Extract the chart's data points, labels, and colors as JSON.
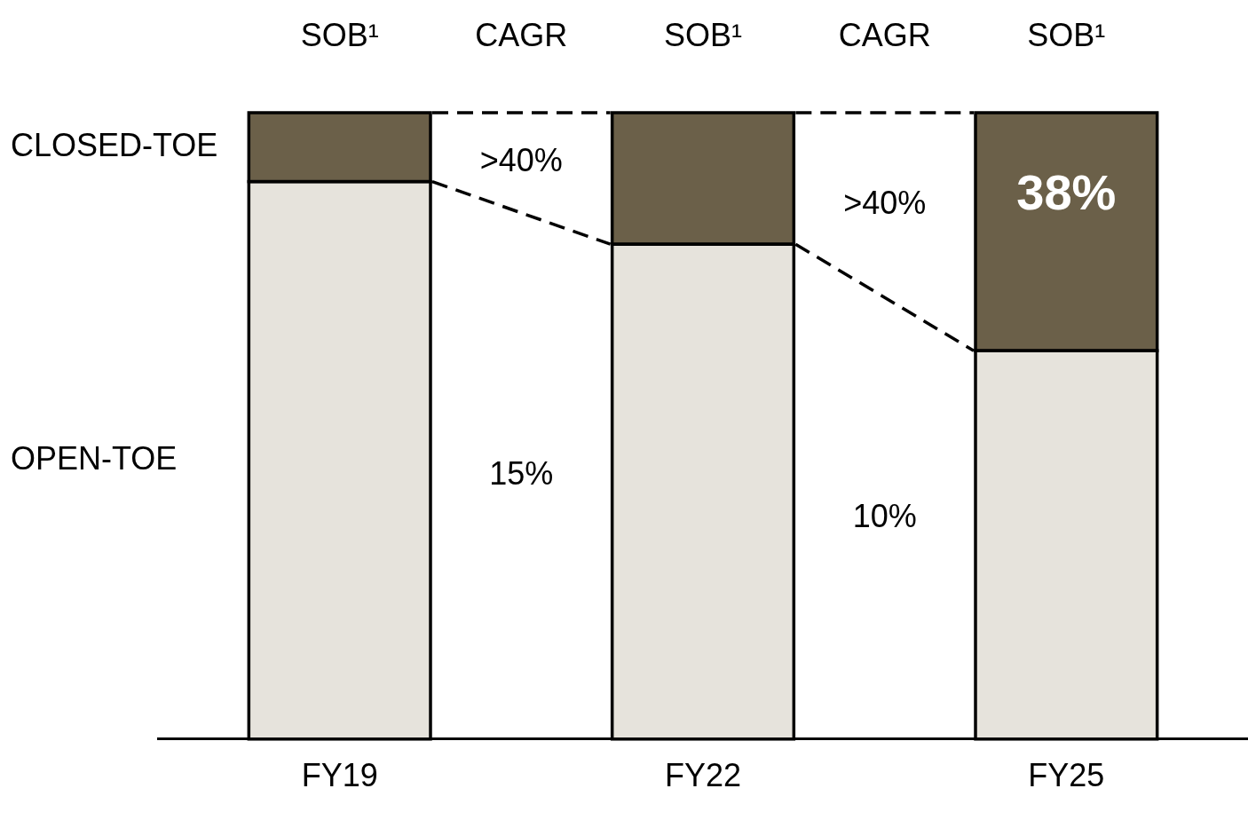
{
  "chart_data": {
    "type": "bar",
    "stacked": true,
    "categories": [
      "FY19",
      "FY22",
      "FY25"
    ],
    "series": [
      {
        "name": "OPEN-TOE",
        "color": "#e6e3dc",
        "values": [
          89,
          79,
          62
        ]
      },
      {
        "name": "CLOSED-TOE",
        "color": "#6b6049",
        "values": [
          11,
          21,
          38
        ],
        "value_labels": [
          null,
          null,
          "38%"
        ]
      }
    ],
    "ylim": [
      0,
      100
    ],
    "tick_labels": "x",
    "grid": false,
    "legend": false,
    "annotations": [
      "SOB¹",
      "CAGR",
      "SOB¹",
      "CAGR",
      "SOB¹",
      ">40%",
      "15%",
      ">40%",
      "10%"
    ]
  }
}
